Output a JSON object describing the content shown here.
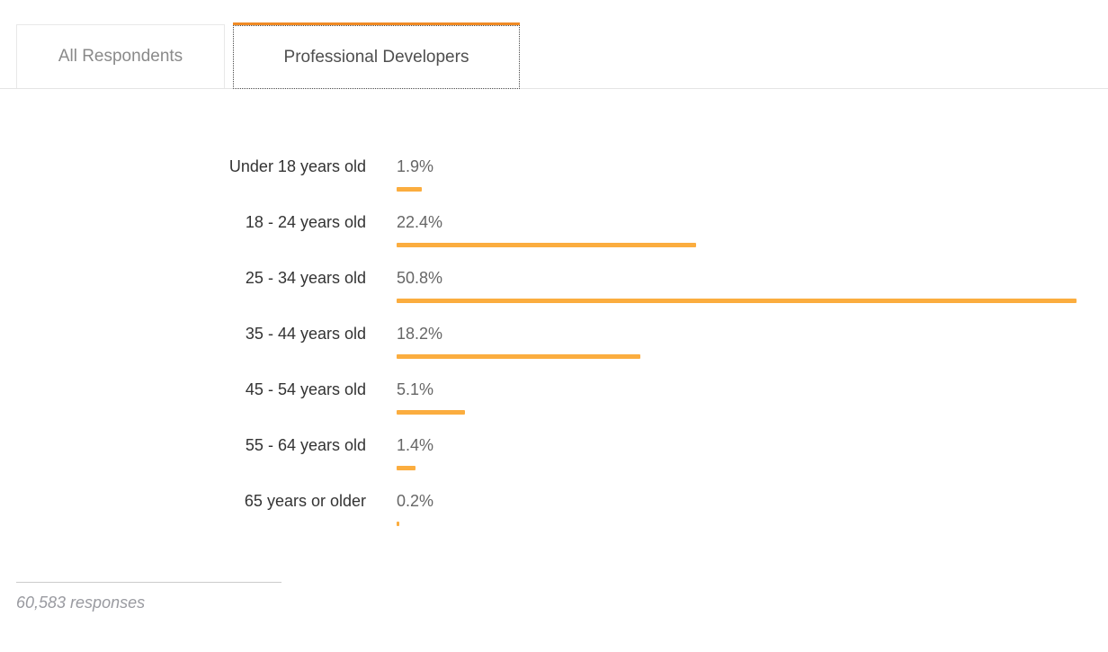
{
  "tabs": {
    "items": [
      {
        "label": "All Respondents",
        "active": false
      },
      {
        "label": "Professional Developers",
        "active": true
      }
    ]
  },
  "chart_data": {
    "type": "bar",
    "orientation": "horizontal",
    "categories": [
      "Under 18 years old",
      "18 - 24 years old",
      "25 - 34 years old",
      "35 - 44 years old",
      "45 - 54 years old",
      "55 - 64 years old",
      "65 years or older"
    ],
    "values": [
      1.9,
      22.4,
      50.8,
      18.2,
      5.1,
      1.4,
      0.2
    ],
    "value_labels": [
      "1.9%",
      "22.4%",
      "50.8%",
      "18.2%",
      "5.1%",
      "1.4%",
      "0.2%"
    ],
    "unit": "%",
    "scale_max": 50.8,
    "bar_color": "#fbad3f",
    "grid": false,
    "legend": null
  },
  "footer": {
    "responses_text": "60,583 responses"
  },
  "colors": {
    "bar": "#fbad3f",
    "active_tab_accent": "#f08a24",
    "label_text": "#333333",
    "value_text": "#666666",
    "inactive_tab_text": "#8a8a8a",
    "active_tab_text": "#4f4f4f",
    "divider": "#e4e4e4",
    "footer_text": "#999aa0"
  }
}
